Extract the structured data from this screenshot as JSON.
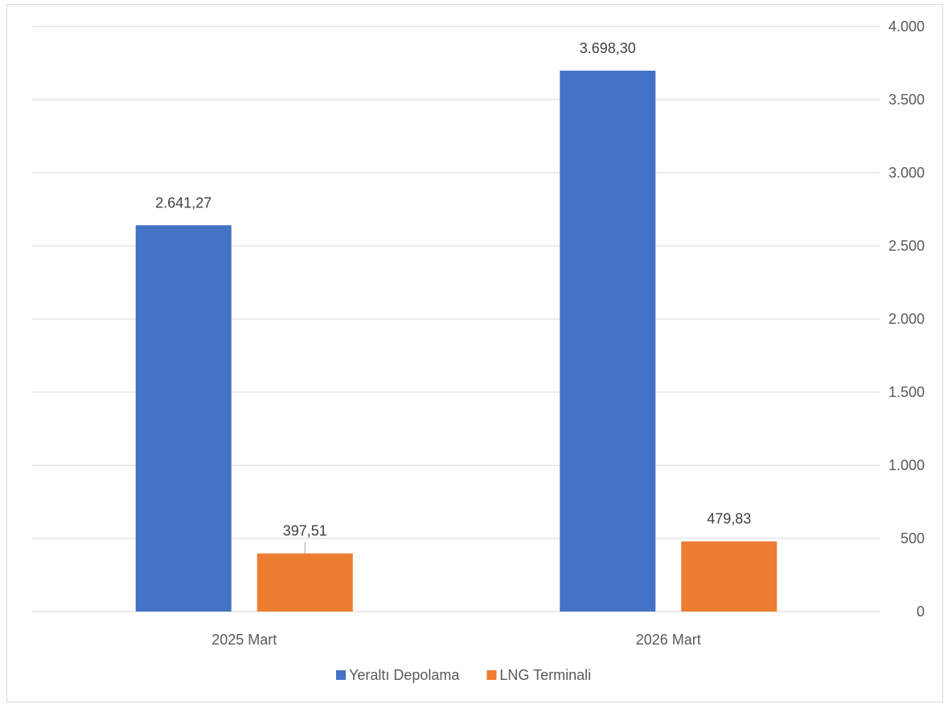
{
  "chart_data": {
    "type": "bar",
    "categories": [
      "2025 Mart",
      "2026 Mart"
    ],
    "series": [
      {
        "name": "Yeraltı Depolama",
        "values": [
          2641.27,
          3698.3
        ],
        "labels": [
          "2.641,27",
          "3.698,30"
        ],
        "color": "#4472c4"
      },
      {
        "name": "LNG Terminali",
        "values": [
          397.51,
          479.83
        ],
        "labels": [
          "397,51",
          "479,83"
        ],
        "color": "#ed7d31"
      }
    ],
    "ylim": [
      0,
      4000
    ],
    "yticks": [
      0,
      500,
      1000,
      1500,
      2000,
      2500,
      3000,
      3500,
      4000
    ],
    "ytick_labels": [
      "0",
      "500",
      "1.000",
      "1.500",
      "2.000",
      "2.500",
      "3.000",
      "3.500",
      "4.000"
    ],
    "yaxis_position": "right",
    "grid": true,
    "legend_position": "bottom",
    "title": "",
    "xlabel": "",
    "ylabel": ""
  }
}
